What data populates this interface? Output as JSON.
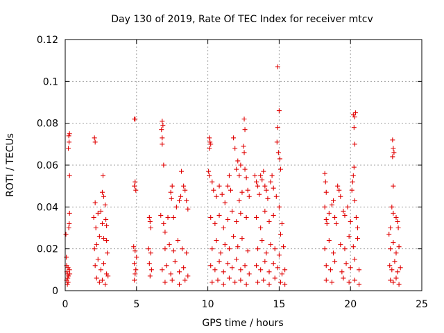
{
  "chart_data": {
    "type": "scatter",
    "title": "Day 130 of 2019, Rate Of TEC Index for receiver mtcv",
    "xlabel": "GPS time / hours",
    "ylabel": "ROTI / TECUs",
    "xlim": [
      0,
      25
    ],
    "ylim": [
      0,
      0.12
    ],
    "xticks": [
      0,
      5,
      10,
      15,
      20,
      25
    ],
    "xtick_labels": [
      "0",
      "5",
      "10",
      "15",
      "20",
      "25"
    ],
    "yticks": [
      0,
      0.02,
      0.04,
      0.06,
      0.08,
      0.1,
      0.12
    ],
    "ytick_labels": [
      "0",
      "0.02",
      "0.04",
      "0.06",
      "0.08",
      "0.1",
      "0.12"
    ],
    "grid": true,
    "marker": "plus",
    "series": [
      {
        "color": "#e00000",
        "points": [
          [
            0.05,
            0.027
          ],
          [
            0.08,
            0.016
          ],
          [
            0.1,
            0.012
          ],
          [
            0.12,
            0.009
          ],
          [
            0.15,
            0.008
          ],
          [
            0.18,
            0.006
          ],
          [
            0.2,
            0.011
          ],
          [
            0.22,
            0.007
          ],
          [
            0.25,
            0.074
          ],
          [
            0.27,
            0.071
          ],
          [
            0.3,
            0.075
          ],
          [
            0.22,
            0.068
          ],
          [
            0.3,
            0.055
          ],
          [
            0.3,
            0.037
          ],
          [
            0.28,
            0.032
          ],
          [
            0.25,
            0.03
          ],
          [
            0.3,
            0.01
          ],
          [
            0.32,
            0.008
          ],
          [
            0.1,
            0.005
          ],
          [
            0.2,
            0.004
          ],
          [
            0.15,
            0.003
          ],
          [
            2.05,
            0.073
          ],
          [
            2.1,
            0.071
          ],
          [
            2.1,
            0.042
          ],
          [
            2.0,
            0.035
          ],
          [
            2.15,
            0.03
          ],
          [
            2.3,
            0.037
          ],
          [
            2.5,
            0.038
          ],
          [
            2.6,
            0.032
          ],
          [
            2.6,
            0.047
          ],
          [
            2.65,
            0.055
          ],
          [
            2.7,
            0.045
          ],
          [
            2.8,
            0.041
          ],
          [
            2.85,
            0.034
          ],
          [
            2.9,
            0.031
          ],
          [
            2.05,
            0.02
          ],
          [
            2.2,
            0.022
          ],
          [
            2.4,
            0.026
          ],
          [
            2.7,
            0.025
          ],
          [
            2.9,
            0.024
          ],
          [
            2.1,
            0.012
          ],
          [
            2.3,
            0.015
          ],
          [
            2.5,
            0.01
          ],
          [
            2.7,
            0.013
          ],
          [
            2.9,
            0.008
          ],
          [
            2.2,
            0.006
          ],
          [
            2.4,
            0.004
          ],
          [
            2.6,
            0.005
          ],
          [
            2.8,
            0.003
          ],
          [
            3.0,
            0.007
          ],
          [
            2.95,
            0.018
          ],
          [
            4.85,
            0.082
          ],
          [
            4.9,
            0.082
          ],
          [
            4.9,
            0.052
          ],
          [
            4.85,
            0.05
          ],
          [
            4.95,
            0.048
          ],
          [
            4.8,
            0.021
          ],
          [
            4.9,
            0.019
          ],
          [
            5.0,
            0.016
          ],
          [
            4.85,
            0.013
          ],
          [
            4.95,
            0.01
          ],
          [
            4.9,
            0.008
          ],
          [
            4.85,
            0.005
          ],
          [
            5.9,
            0.035
          ],
          [
            5.95,
            0.033
          ],
          [
            6.0,
            0.03
          ],
          [
            5.85,
            0.02
          ],
          [
            6.0,
            0.018
          ],
          [
            5.9,
            0.013
          ],
          [
            6.05,
            0.01
          ],
          [
            5.95,
            0.007
          ],
          [
            6.8,
            0.081
          ],
          [
            6.85,
            0.079
          ],
          [
            6.75,
            0.077
          ],
          [
            6.8,
            0.073
          ],
          [
            6.8,
            0.07
          ],
          [
            6.9,
            0.06
          ],
          [
            6.7,
            0.036
          ],
          [
            6.9,
            0.032
          ],
          [
            7.0,
            0.028
          ],
          [
            7.2,
            0.035
          ],
          [
            7.4,
            0.047
          ],
          [
            7.5,
            0.05
          ],
          [
            7.45,
            0.044
          ],
          [
            7.6,
            0.035
          ],
          [
            7.8,
            0.04
          ],
          [
            8.0,
            0.043
          ],
          [
            8.1,
            0.045
          ],
          [
            8.15,
            0.057
          ],
          [
            8.3,
            0.05
          ],
          [
            8.4,
            0.048
          ],
          [
            8.5,
            0.043
          ],
          [
            8.6,
            0.039
          ],
          [
            7.0,
            0.02
          ],
          [
            7.3,
            0.022
          ],
          [
            7.6,
            0.019
          ],
          [
            7.9,
            0.024
          ],
          [
            8.2,
            0.02
          ],
          [
            8.5,
            0.018
          ],
          [
            6.8,
            0.01
          ],
          [
            7.1,
            0.012
          ],
          [
            7.4,
            0.008
          ],
          [
            7.7,
            0.014
          ],
          [
            8.0,
            0.009
          ],
          [
            8.3,
            0.011
          ],
          [
            8.6,
            0.007
          ],
          [
            7.0,
            0.004
          ],
          [
            7.5,
            0.005
          ],
          [
            8.0,
            0.003
          ],
          [
            8.4,
            0.005
          ],
          [
            10.1,
            0.073
          ],
          [
            10.15,
            0.071
          ],
          [
            10.2,
            0.07
          ],
          [
            10.1,
            0.068
          ],
          [
            10.05,
            0.057
          ],
          [
            10.1,
            0.055
          ],
          [
            10.3,
            0.052
          ],
          [
            10.4,
            0.048
          ],
          [
            10.6,
            0.045
          ],
          [
            10.8,
            0.05
          ],
          [
            11.0,
            0.046
          ],
          [
            11.2,
            0.042
          ],
          [
            11.4,
            0.05
          ],
          [
            11.5,
            0.055
          ],
          [
            11.6,
            0.048
          ],
          [
            11.8,
            0.073
          ],
          [
            11.9,
            0.068
          ],
          [
            12.0,
            0.058
          ],
          [
            12.1,
            0.062
          ],
          [
            12.2,
            0.055
          ],
          [
            12.3,
            0.06
          ],
          [
            12.5,
            0.069
          ],
          [
            12.55,
            0.082
          ],
          [
            12.6,
            0.077
          ],
          [
            12.55,
            0.066
          ],
          [
            12.6,
            0.058
          ],
          [
            12.7,
            0.054
          ],
          [
            12.8,
            0.048
          ],
          [
            12.9,
            0.045
          ],
          [
            12.4,
            0.047
          ],
          [
            12.2,
            0.043
          ],
          [
            10.2,
            0.035
          ],
          [
            10.5,
            0.032
          ],
          [
            10.8,
            0.036
          ],
          [
            11.1,
            0.03
          ],
          [
            11.4,
            0.034
          ],
          [
            11.7,
            0.038
          ],
          [
            12.0,
            0.033
          ],
          [
            12.3,
            0.037
          ],
          [
            12.7,
            0.035
          ],
          [
            10.3,
            0.02
          ],
          [
            10.6,
            0.024
          ],
          [
            10.9,
            0.018
          ],
          [
            11.2,
            0.022
          ],
          [
            11.5,
            0.02
          ],
          [
            11.8,
            0.026
          ],
          [
            12.1,
            0.021
          ],
          [
            12.4,
            0.025
          ],
          [
            12.8,
            0.019
          ],
          [
            10.2,
            0.012
          ],
          [
            10.5,
            0.01
          ],
          [
            10.8,
            0.014
          ],
          [
            11.1,
            0.009
          ],
          [
            11.4,
            0.013
          ],
          [
            11.7,
            0.011
          ],
          [
            12.0,
            0.015
          ],
          [
            12.3,
            0.01
          ],
          [
            12.6,
            0.012
          ],
          [
            12.9,
            0.008
          ],
          [
            10.3,
            0.004
          ],
          [
            10.7,
            0.005
          ],
          [
            11.1,
            0.003
          ],
          [
            11.5,
            0.006
          ],
          [
            11.9,
            0.004
          ],
          [
            12.3,
            0.005
          ],
          [
            12.7,
            0.003
          ],
          [
            13.3,
            0.055
          ],
          [
            13.4,
            0.052
          ],
          [
            13.5,
            0.05
          ],
          [
            13.6,
            0.046
          ],
          [
            13.7,
            0.055
          ],
          [
            13.8,
            0.053
          ],
          [
            13.9,
            0.057
          ],
          [
            14.0,
            0.05
          ],
          [
            14.1,
            0.048
          ],
          [
            14.2,
            0.044
          ],
          [
            14.4,
            0.052
          ],
          [
            14.5,
            0.055
          ],
          [
            14.6,
            0.049
          ],
          [
            14.8,
            0.045
          ],
          [
            14.85,
            0.071
          ],
          [
            14.9,
            0.078
          ],
          [
            15.0,
            0.086
          ],
          [
            14.95,
            0.066
          ],
          [
            15.05,
            0.063
          ],
          [
            15.1,
            0.058
          ],
          [
            14.9,
            0.107
          ],
          [
            15.0,
            0.04
          ],
          [
            15.2,
            0.032
          ],
          [
            13.4,
            0.035
          ],
          [
            13.7,
            0.03
          ],
          [
            14.0,
            0.038
          ],
          [
            14.3,
            0.033
          ],
          [
            14.6,
            0.036
          ],
          [
            15.1,
            0.027
          ],
          [
            13.5,
            0.02
          ],
          [
            13.8,
            0.024
          ],
          [
            14.1,
            0.018
          ],
          [
            14.4,
            0.022
          ],
          [
            14.7,
            0.02
          ],
          [
            15.0,
            0.017
          ],
          [
            15.3,
            0.021
          ],
          [
            13.4,
            0.012
          ],
          [
            13.7,
            0.01
          ],
          [
            14.0,
            0.014
          ],
          [
            14.3,
            0.009
          ],
          [
            14.6,
            0.013
          ],
          [
            14.9,
            0.011
          ],
          [
            15.2,
            0.008
          ],
          [
            15.4,
            0.01
          ],
          [
            13.5,
            0.004
          ],
          [
            13.9,
            0.005
          ],
          [
            14.3,
            0.003
          ],
          [
            14.7,
            0.006
          ],
          [
            15.1,
            0.004
          ],
          [
            15.4,
            0.003
          ],
          [
            18.2,
            0.056
          ],
          [
            18.25,
            0.052
          ],
          [
            18.3,
            0.047
          ],
          [
            18.2,
            0.04
          ],
          [
            18.3,
            0.034
          ],
          [
            18.35,
            0.032
          ],
          [
            18.5,
            0.037
          ],
          [
            18.7,
            0.041
          ],
          [
            18.8,
            0.043
          ],
          [
            18.9,
            0.035
          ],
          [
            19.0,
            0.032
          ],
          [
            19.1,
            0.05
          ],
          [
            19.2,
            0.048
          ],
          [
            19.3,
            0.045
          ],
          [
            19.5,
            0.038
          ],
          [
            19.6,
            0.036
          ],
          [
            19.8,
            0.04
          ],
          [
            20.0,
            0.033
          ],
          [
            20.1,
            0.048
          ],
          [
            20.15,
            0.052
          ],
          [
            20.2,
            0.055
          ],
          [
            20.25,
            0.059
          ],
          [
            20.3,
            0.07
          ],
          [
            20.25,
            0.078
          ],
          [
            20.3,
            0.083
          ],
          [
            20.35,
            0.085
          ],
          [
            20.2,
            0.084
          ],
          [
            20.3,
            0.043
          ],
          [
            20.4,
            0.035
          ],
          [
            20.5,
            0.03
          ],
          [
            18.2,
            0.02
          ],
          [
            18.5,
            0.024
          ],
          [
            18.8,
            0.018
          ],
          [
            19.3,
            0.022
          ],
          [
            19.6,
            0.02
          ],
          [
            19.9,
            0.026
          ],
          [
            20.2,
            0.021
          ],
          [
            20.5,
            0.025
          ],
          [
            18.3,
            0.012
          ],
          [
            18.6,
            0.01
          ],
          [
            18.9,
            0.014
          ],
          [
            19.4,
            0.009
          ],
          [
            19.7,
            0.013
          ],
          [
            20.0,
            0.011
          ],
          [
            20.3,
            0.015
          ],
          [
            20.6,
            0.01
          ],
          [
            18.3,
            0.005
          ],
          [
            18.7,
            0.004
          ],
          [
            19.5,
            0.006
          ],
          [
            19.9,
            0.004
          ],
          [
            20.3,
            0.005
          ],
          [
            20.6,
            0.003
          ],
          [
            22.95,
            0.072
          ],
          [
            23.0,
            0.068
          ],
          [
            23.05,
            0.066
          ],
          [
            22.95,
            0.064
          ],
          [
            23.0,
            0.05
          ],
          [
            22.9,
            0.04
          ],
          [
            23.0,
            0.037
          ],
          [
            23.2,
            0.035
          ],
          [
            23.3,
            0.033
          ],
          [
            23.35,
            0.03
          ],
          [
            22.8,
            0.03
          ],
          [
            22.7,
            0.027
          ],
          [
            22.8,
            0.02
          ],
          [
            23.0,
            0.023
          ],
          [
            23.2,
            0.018
          ],
          [
            23.4,
            0.021
          ],
          [
            22.75,
            0.012
          ],
          [
            22.9,
            0.01
          ],
          [
            23.1,
            0.014
          ],
          [
            23.3,
            0.009
          ],
          [
            23.5,
            0.011
          ],
          [
            22.8,
            0.005
          ],
          [
            23.0,
            0.004
          ],
          [
            23.2,
            0.006
          ],
          [
            23.4,
            0.003
          ]
        ]
      }
    ]
  }
}
